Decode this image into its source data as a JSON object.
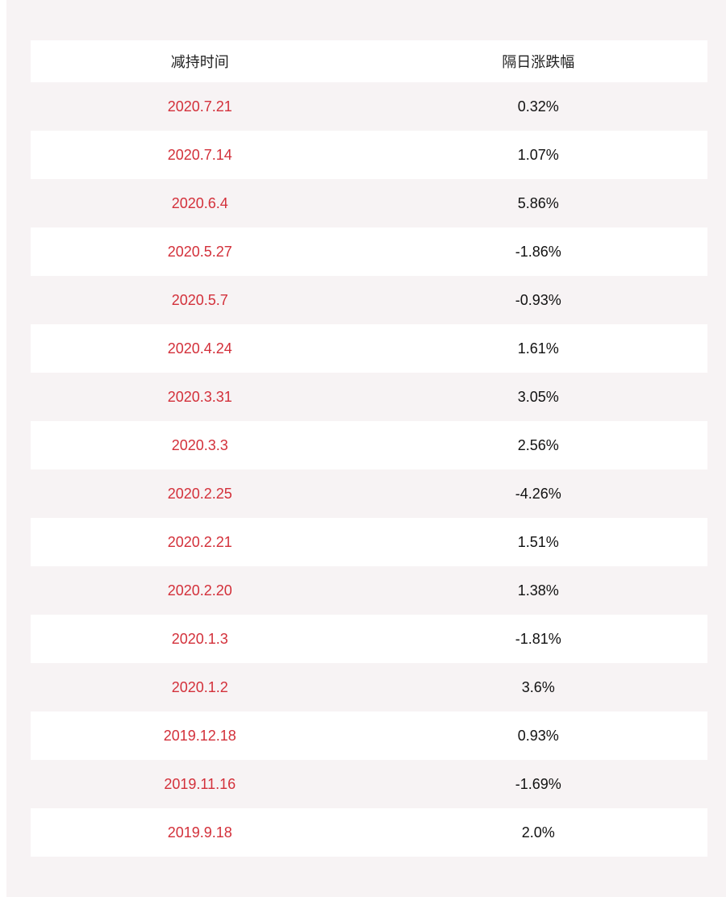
{
  "table": {
    "header": [
      "减持时间",
      "隔日涨跌幅"
    ],
    "rows": [
      [
        "2020.7.21",
        "0.32%"
      ],
      [
        "2020.7.14",
        "1.07%"
      ],
      [
        "2020.6.4",
        "5.86%"
      ],
      [
        "2020.5.27",
        "-1.86%"
      ],
      [
        "2020.5.7",
        "-0.93%"
      ],
      [
        "2020.4.24",
        "1.61%"
      ],
      [
        "2020.3.31",
        "3.05%"
      ],
      [
        "2020.3.3",
        "2.56%"
      ],
      [
        "2020.2.25",
        "-4.26%"
      ],
      [
        "2020.2.21",
        "1.51%"
      ],
      [
        "2020.2.20",
        "1.38%"
      ],
      [
        "2020.1.3",
        "-1.81%"
      ],
      [
        "2020.1.2",
        "3.6%"
      ],
      [
        "2019.12.18",
        "0.93%"
      ],
      [
        "2019.11.16",
        "-1.69%"
      ],
      [
        "2019.9.18",
        "2.0%"
      ]
    ]
  }
}
